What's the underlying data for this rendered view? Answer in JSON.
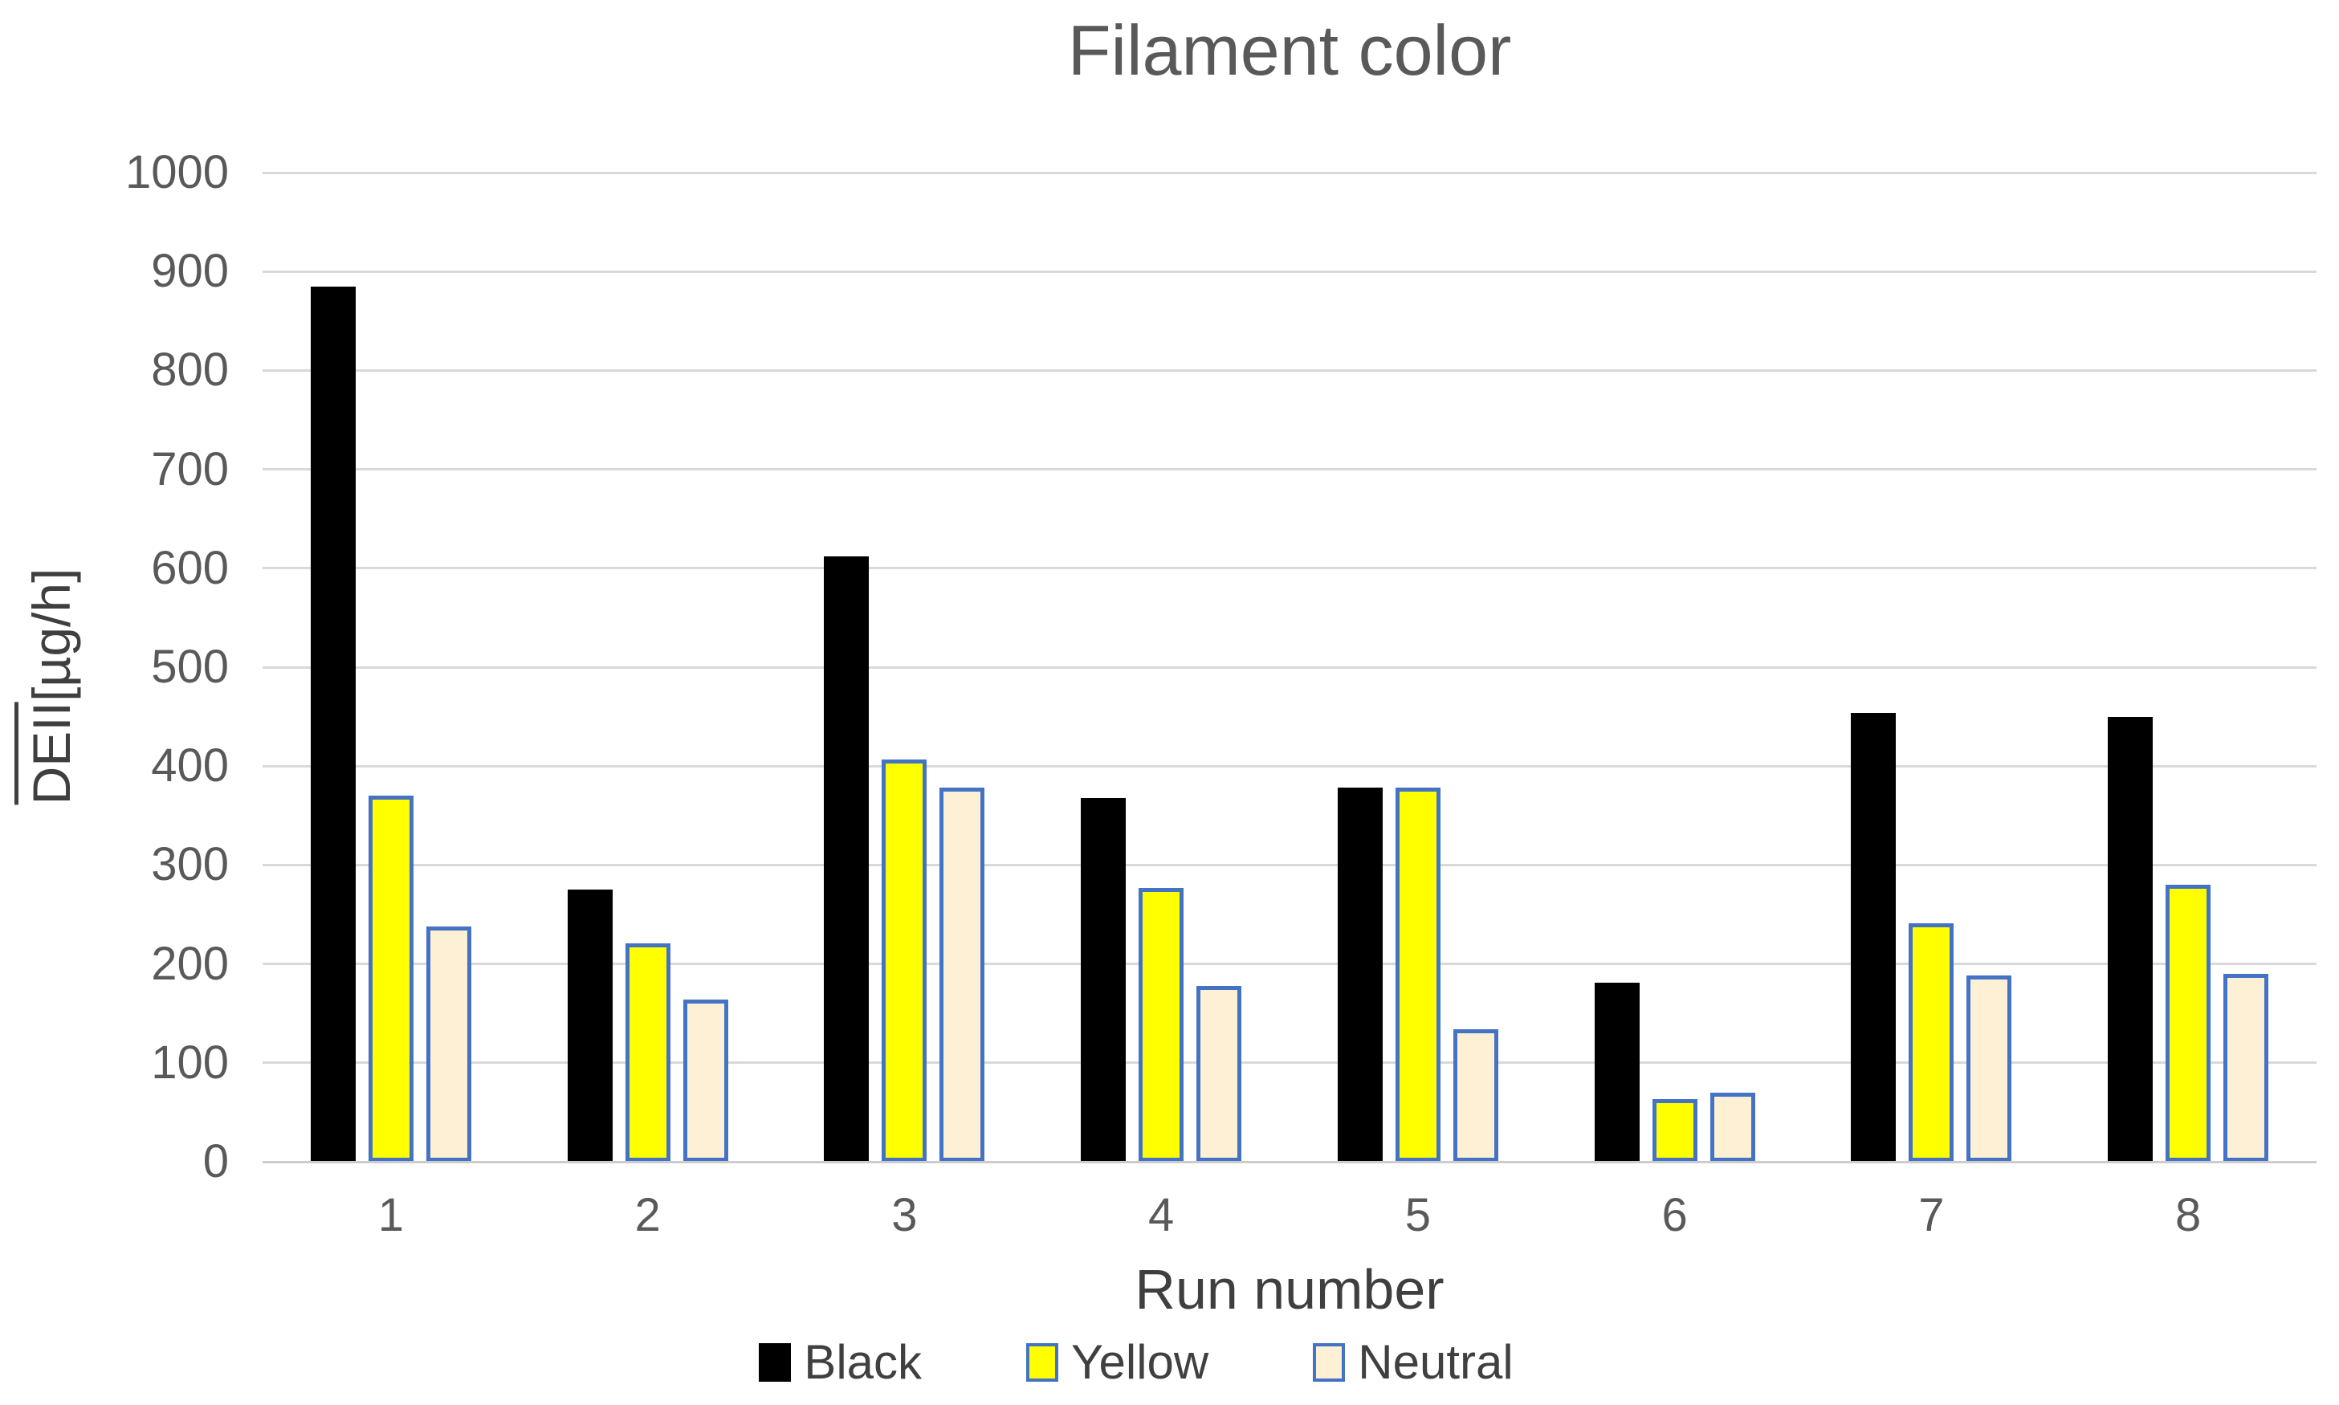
{
  "title": "Filament color",
  "y_axis": {
    "label_mean": "DEII",
    "label_unit": "[µg/h]",
    "min": 0,
    "max": 1000,
    "step": 100
  },
  "x_axis": {
    "title": "Run number"
  },
  "colors": {
    "grid": "#D9D9D9",
    "axis_line": "#CCCCCC",
    "title_text": "#595959",
    "tick_text": "#595959",
    "axis_title_text": "#3F3F3F",
    "legend_text": "#404040",
    "series_black": "#000000",
    "series_yellow": "#FFFF00",
    "series_neutral": "#FDF0D5",
    "series_border_blue": "#4472C4"
  },
  "chart_data": {
    "type": "bar",
    "title": "Filament color",
    "xlabel": "Run number",
    "ylabel": "DEII[µg/h] (DEII has overline = mean)",
    "categories": [
      "1",
      "2",
      "3",
      "4",
      "5",
      "6",
      "7",
      "8"
    ],
    "yticks": [
      0,
      100,
      200,
      300,
      400,
      500,
      600,
      700,
      800,
      900,
      1000
    ],
    "ylim": [
      0,
      1000
    ],
    "grid": true,
    "legend_position": "bottom",
    "series": [
      {
        "name": "Black",
        "fill": "#000000",
        "border": null,
        "values": [
          885,
          275,
          612,
          368,
          378,
          181,
          454,
          450
        ]
      },
      {
        "name": "Yellow",
        "fill": "#FFFF00",
        "border": "#4472C4",
        "values": [
          370,
          221,
          407,
          277,
          378,
          63,
          241,
          280
        ]
      },
      {
        "name": "Neutral",
        "fill": "#FDF0D5",
        "border": "#4472C4",
        "values": [
          238,
          164,
          378,
          178,
          134,
          70,
          188,
          190
        ]
      }
    ]
  }
}
